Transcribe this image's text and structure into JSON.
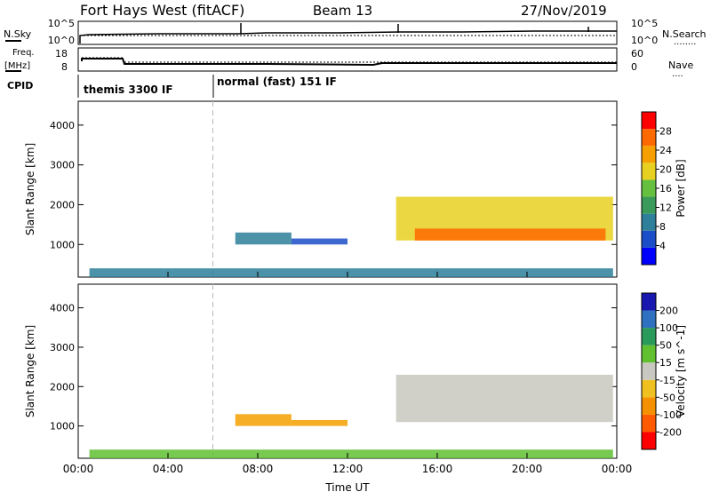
{
  "header": {
    "station": "Fort Hays West (fitACF)",
    "beam": "Beam 13",
    "date": "27/Nov/2019"
  },
  "labels": {
    "nsky": "N.Sky",
    "nsearch": "N.Search",
    "nsearch_dots": "........",
    "freq_top": "Freq.",
    "freq_unit": "[MHz]",
    "nave": "Nave",
    "nave_dots": "....",
    "cpid": "CPID",
    "noise_tick_hi": "10^5",
    "noise_tick_lo": "10^0",
    "noise_tick_hi_r": "10^5",
    "noise_tick_lo_r": "10^0",
    "freq_tick_hi": "18",
    "freq_tick_lo": "8",
    "nave_tick_hi": "60",
    "nave_tick_lo": "0",
    "cpid_1": "themis 3300 IF",
    "cpid_2": "normal (fast) 151 IF"
  },
  "chart_data": [
    {
      "type": "heatmap",
      "panel": "power",
      "ylabel": "Slant Range [km]",
      "xlabel": "",
      "yticks": [
        "1000",
        "2000",
        "3000",
        "4000"
      ],
      "ylim": [
        180,
        4600
      ],
      "colorbar_label": "Power [dB]",
      "colorbar_ticks": [
        "4",
        "8",
        "12",
        "16",
        "20",
        "24",
        "28"
      ],
      "colorbar_range": [
        0,
        32
      ],
      "echo_regions": [
        {
          "time_start": "07:00",
          "time_end": "09:30",
          "range_km": [
            1000,
            1300
          ],
          "value_db": 9
        },
        {
          "time_start": "09:30",
          "time_end": "12:00",
          "range_km": [
            1000,
            1150
          ],
          "value_db": 7
        },
        {
          "time_start": "14:10",
          "time_end": "23:50",
          "range_km": [
            1100,
            2200
          ],
          "value_db": 18
        },
        {
          "time_start": "15:00",
          "time_end": "23:30",
          "range_km": [
            1100,
            1400
          ],
          "value_db": 28
        },
        {
          "time_start": "00:30",
          "time_end": "23:50",
          "range_km": [
            180,
            400
          ],
          "value_db": 10
        }
      ]
    },
    {
      "type": "heatmap",
      "panel": "velocity",
      "ylabel": "Slant Range [km]",
      "xlabel": "Time UT",
      "yticks": [
        "1000",
        "2000",
        "3000",
        "4000"
      ],
      "ylim": [
        180,
        4600
      ],
      "xticks": [
        "00:00",
        "04:00",
        "08:00",
        "12:00",
        "16:00",
        "20:00",
        "00:00"
      ],
      "colorbar_label": "Velocity [m s^-1]",
      "colorbar_ticks": [
        "200",
        "100",
        "50",
        "15",
        "-15",
        "-50",
        "-100",
        "-200"
      ],
      "echo_regions": [
        {
          "time_start": "07:00",
          "time_end": "09:30",
          "range_km": [
            1000,
            1300
          ],
          "value_ms": -40
        },
        {
          "time_start": "09:30",
          "time_end": "12:00",
          "range_km": [
            1000,
            1150
          ],
          "value_ms": -40
        },
        {
          "time_start": "14:10",
          "time_end": "23:50",
          "range_km": [
            1100,
            2300
          ],
          "value_ms": 0
        },
        {
          "time_start": "00:30",
          "time_end": "23:50",
          "range_km": [
            180,
            400
          ],
          "value_ms": 20
        }
      ]
    }
  ]
}
